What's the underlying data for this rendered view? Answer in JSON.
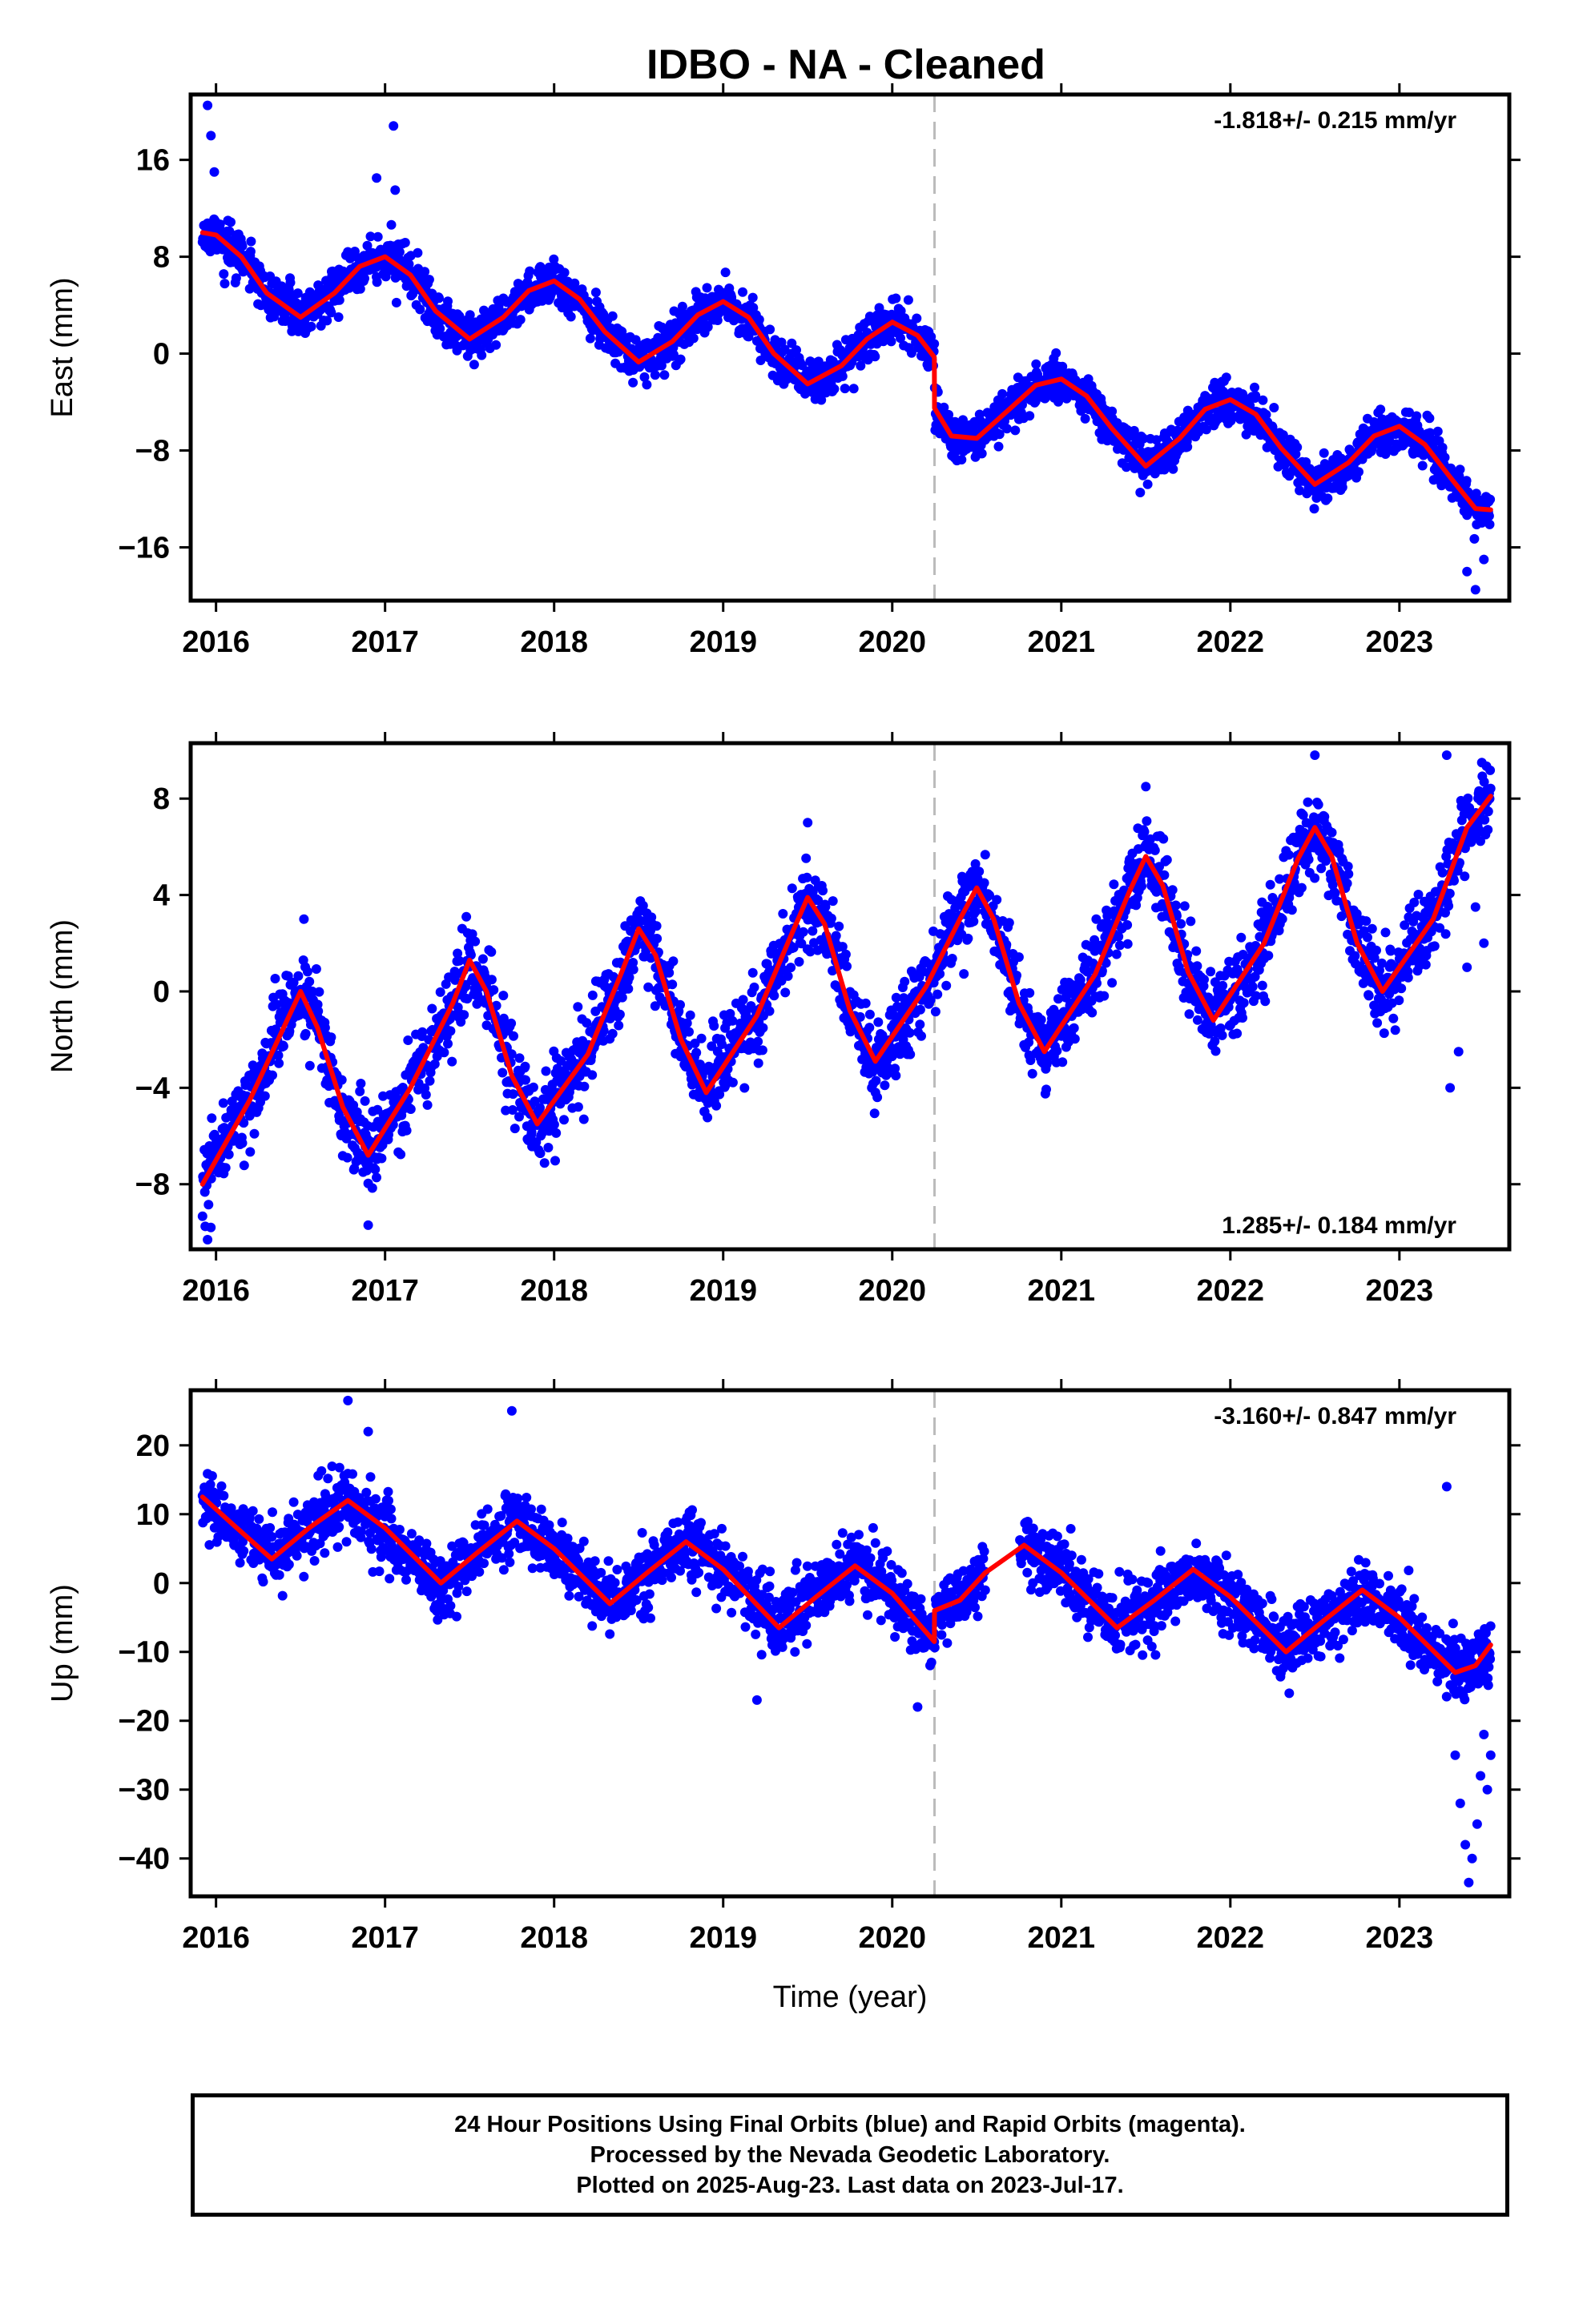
{
  "title": "IDBO  - NA - Cleaned",
  "footer": {
    "line1": "24 Hour Positions Using Final Orbits (blue) and Rapid Orbits (magenta).",
    "line2": "Processed by the Nevada Geodetic Laboratory.",
    "line3": "Plotted on 2025-Aug-23. Last data on 2023-Jul-17."
  },
  "colors": {
    "points": "#0000ff",
    "fit": "#ff0000",
    "break_line": "#bbbbbb",
    "axis": "#000000"
  },
  "chart_data": [
    {
      "type": "scatter",
      "component": "East",
      "ylabel": "East (mm)",
      "xlabel": "",
      "rate_text": "-1.818+/- 0.215 mm/yr",
      "rate_position": "top-right",
      "xlim": [
        2015.85,
        2023.65
      ],
      "ylim": [
        -20.4,
        21.4
      ],
      "yticks": [
        -16,
        -8,
        0,
        8,
        16
      ],
      "xticks": [
        2016,
        2017,
        2018,
        2019,
        2020,
        2021,
        2022,
        2023
      ],
      "xtick_labels": [
        "2016",
        "2017",
        "2018",
        "2019",
        "2020",
        "2021",
        "2022",
        "2023"
      ],
      "grid": false,
      "break_epoch": 2020.25,
      "data_range": [
        2015.92,
        2023.54
      ],
      "fit_curve": {
        "x": [
          2015.92,
          2016.0,
          2016.15,
          2016.3,
          2016.5,
          2016.7,
          2016.85,
          2017.0,
          2017.15,
          2017.3,
          2017.5,
          2017.7,
          2017.85,
          2018.0,
          2018.15,
          2018.3,
          2018.5,
          2018.7,
          2018.85,
          2019.0,
          2019.15,
          2019.3,
          2019.5,
          2019.7,
          2019.85,
          2020.0,
          2020.15,
          2020.249,
          2020.25,
          2020.35,
          2020.5,
          2020.7,
          2020.85,
          2021.0,
          2021.15,
          2021.3,
          2021.5,
          2021.7,
          2021.85,
          2022.0,
          2022.15,
          2022.3,
          2022.5,
          2022.7,
          2022.85,
          2023.0,
          2023.15,
          2023.3,
          2023.45,
          2023.54
        ],
        "y": [
          10.0,
          9.8,
          8.0,
          5.0,
          3.0,
          5.0,
          7.2,
          8.0,
          6.5,
          3.5,
          1.2,
          3.0,
          5.2,
          6.0,
          4.5,
          1.8,
          -0.7,
          1.0,
          3.2,
          4.3,
          3.0,
          0.0,
          -2.5,
          -1.0,
          1.2,
          2.6,
          1.5,
          -0.3,
          -4.5,
          -6.8,
          -7.0,
          -4.5,
          -2.6,
          -2.1,
          -3.5,
          -6.2,
          -9.3,
          -7.0,
          -4.6,
          -3.8,
          -5.0,
          -7.8,
          -10.8,
          -9.0,
          -6.8,
          -6.0,
          -7.5,
          -10.2,
          -12.8,
          -12.9
        ]
      },
      "scatter": {
        "scale": 1.0,
        "seed": 11,
        "noise": 0.9,
        "outliers": [
          [
            2015.95,
            20.5
          ],
          [
            2015.97,
            18.0
          ],
          [
            2015.99,
            15.0
          ],
          [
            2016.95,
            14.5
          ],
          [
            2017.05,
            18.8
          ],
          [
            2017.06,
            13.5
          ],
          [
            2023.45,
            -19.5
          ],
          [
            2023.4,
            -18.0
          ],
          [
            2023.5,
            -17.0
          ]
        ]
      }
    },
    {
      "type": "scatter",
      "component": "North",
      "ylabel": "North (mm)",
      "xlabel": "",
      "rate_text": "1.285+/- 0.184 mm/yr",
      "rate_position": "bottom-right",
      "xlim": [
        2015.85,
        2023.65
      ],
      "ylim": [
        -10.7,
        10.3
      ],
      "yticks": [
        -8,
        -4,
        0,
        4,
        8
      ],
      "xticks": [
        2016,
        2017,
        2018,
        2019,
        2020,
        2021,
        2022,
        2023
      ],
      "xtick_labels": [
        "2016",
        "2017",
        "2018",
        "2019",
        "2020",
        "2021",
        "2022",
        "2023"
      ],
      "grid": false,
      "break_epoch": 2020.25,
      "data_range": [
        2015.92,
        2023.54
      ],
      "fit_curve": {
        "x": [
          2015.92,
          2016.2,
          2016.4,
          2016.5,
          2016.6,
          2016.75,
          2016.9,
          2017.15,
          2017.4,
          2017.5,
          2017.6,
          2017.75,
          2017.9,
          2018.2,
          2018.4,
          2018.5,
          2018.6,
          2018.75,
          2018.9,
          2019.2,
          2019.4,
          2019.5,
          2019.6,
          2019.75,
          2019.9,
          2020.2,
          2020.4,
          2020.5,
          2020.6,
          2020.75,
          2020.9,
          2021.2,
          2021.4,
          2021.5,
          2021.6,
          2021.75,
          2021.9,
          2022.2,
          2022.4,
          2022.5,
          2022.6,
          2022.75,
          2022.9,
          2023.2,
          2023.4,
          2023.54
        ],
        "y": [
          -8.0,
          -4.5,
          -1.5,
          0.0,
          -1.5,
          -4.8,
          -6.8,
          -4.0,
          -0.5,
          1.3,
          0.0,
          -3.5,
          -5.5,
          -2.6,
          0.8,
          2.6,
          1.5,
          -2.0,
          -4.2,
          -1.0,
          2.3,
          3.9,
          2.8,
          -0.8,
          -2.9,
          0.2,
          3.0,
          4.3,
          3.0,
          -0.5,
          -2.5,
          0.7,
          4.1,
          5.6,
          4.4,
          0.8,
          -1.2,
          2.0,
          5.5,
          6.8,
          5.6,
          2.0,
          0.0,
          3.0,
          6.8,
          8.1
        ]
      },
      "scatter": {
        "scale": 1.0,
        "seed": 23,
        "noise": 0.85,
        "outliers": [
          [
            2015.95,
            -10.3
          ],
          [
            2016.52,
            3.0
          ],
          [
            2016.9,
            -9.7
          ],
          [
            2019.5,
            7.0
          ],
          [
            2021.5,
            8.5
          ],
          [
            2022.5,
            9.8
          ],
          [
            2023.28,
            9.8
          ],
          [
            2023.3,
            -4.0
          ],
          [
            2023.35,
            -2.5
          ],
          [
            2023.4,
            1.0
          ],
          [
            2023.45,
            3.5
          ],
          [
            2023.5,
            2.0
          ]
        ]
      }
    },
    {
      "type": "scatter",
      "component": "Up",
      "ylabel": "Up (mm)",
      "xlabel": "Time (year)",
      "rate_text": "-3.160+/- 0.847 mm/yr",
      "rate_position": "top-right",
      "xlim": [
        2015.85,
        2023.65
      ],
      "ylim": [
        -45.5,
        28.0
      ],
      "yticks": [
        -40,
        -30,
        -20,
        -10,
        0,
        10,
        20
      ],
      "xticks": [
        2016,
        2017,
        2018,
        2019,
        2020,
        2021,
        2022,
        2023
      ],
      "xtick_labels": [
        "2016",
        "2017",
        "2018",
        "2019",
        "2020",
        "2021",
        "2022",
        "2023"
      ],
      "grid": false,
      "break_epoch": 2020.25,
      "data_range": [
        2015.92,
        2023.54
      ],
      "gaps": [
        [
          2020.55,
          2020.75
        ]
      ],
      "fit_curve": {
        "x": [
          2015.92,
          2016.1,
          2016.33,
          2016.55,
          2016.78,
          2017.0,
          2017.33,
          2017.55,
          2017.78,
          2018.0,
          2018.33,
          2018.55,
          2018.78,
          2019.0,
          2019.33,
          2019.55,
          2019.78,
          2020.0,
          2020.249,
          2020.25,
          2020.4,
          2020.55,
          2020.78,
          2021.0,
          2021.33,
          2021.55,
          2021.78,
          2022.0,
          2022.33,
          2022.55,
          2022.78,
          2023.0,
          2023.33,
          2023.45,
          2023.54
        ],
        "y": [
          12.5,
          8.5,
          3.5,
          8.0,
          12.0,
          8.0,
          0.0,
          4.5,
          9.0,
          5.0,
          -3.0,
          1.5,
          6.0,
          2.0,
          -6.5,
          -2.0,
          2.5,
          -1.5,
          -8.5,
          -4.0,
          -2.5,
          1.5,
          5.5,
          1.5,
          -6.5,
          -2.5,
          2.0,
          -2.0,
          -10.0,
          -5.5,
          -1.0,
          -5.0,
          -13.0,
          -12.0,
          -9.0
        ]
      },
      "scatter": {
        "scale": 3.2,
        "seed": 37,
        "noise": 0.75,
        "outliers": [
          [
            2016.78,
            26.5
          ],
          [
            2017.75,
            25.0
          ],
          [
            2016.9,
            22.0
          ],
          [
            2019.2,
            -17.0
          ],
          [
            2020.15,
            -18.0
          ],
          [
            2023.28,
            14.0
          ],
          [
            2023.33,
            -25.0
          ],
          [
            2023.36,
            -32.0
          ],
          [
            2023.39,
            -38.0
          ],
          [
            2023.41,
            -43.5
          ],
          [
            2023.43,
            -40.0
          ],
          [
            2023.46,
            -35.0
          ],
          [
            2023.48,
            -28.0
          ],
          [
            2023.5,
            -22.0
          ],
          [
            2023.52,
            -30.0
          ],
          [
            2023.54,
            -25.0
          ]
        ]
      }
    }
  ]
}
